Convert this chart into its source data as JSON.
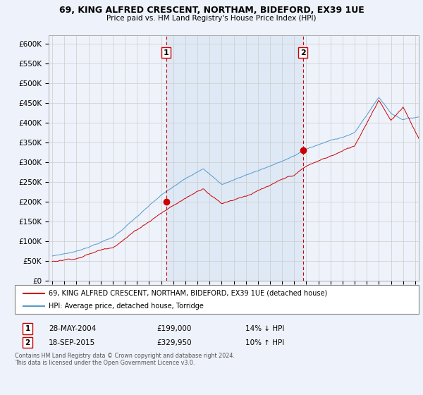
{
  "title": "69, KING ALFRED CRESCENT, NORTHAM, BIDEFORD, EX39 1UE",
  "subtitle": "Price paid vs. HM Land Registry's House Price Index (HPI)",
  "ylim": [
    0,
    620000
  ],
  "yticks": [
    0,
    50000,
    100000,
    150000,
    200000,
    250000,
    300000,
    350000,
    400000,
    450000,
    500000,
    550000,
    600000
  ],
  "xlim_start": 1994.7,
  "xlim_end": 2025.3,
  "sale1_date": 2004.41,
  "sale1_price": 199000,
  "sale1_label": "1",
  "sale2_date": 2015.72,
  "sale2_price": 329950,
  "sale2_label": "2",
  "line_color_red": "#cc0000",
  "line_color_blue": "#5599cc",
  "vline_color": "#cc0000",
  "grid_color": "#cccccc",
  "background_color": "#eef2fa",
  "shade_color": "#dde8f5",
  "legend_label_red": "69, KING ALFRED CRESCENT, NORTHAM, BIDEFORD, EX39 1UE (detached house)",
  "legend_label_blue": "HPI: Average price, detached house, Torridge",
  "annotation1_date": "28-MAY-2004",
  "annotation1_price": "£199,000",
  "annotation1_hpi": "14% ↓ HPI",
  "annotation2_date": "18-SEP-2015",
  "annotation2_price": "£329,950",
  "annotation2_hpi": "10% ↑ HPI",
  "footnote": "Contains HM Land Registry data © Crown copyright and database right 2024.\nThis data is licensed under the Open Government Licence v3.0."
}
